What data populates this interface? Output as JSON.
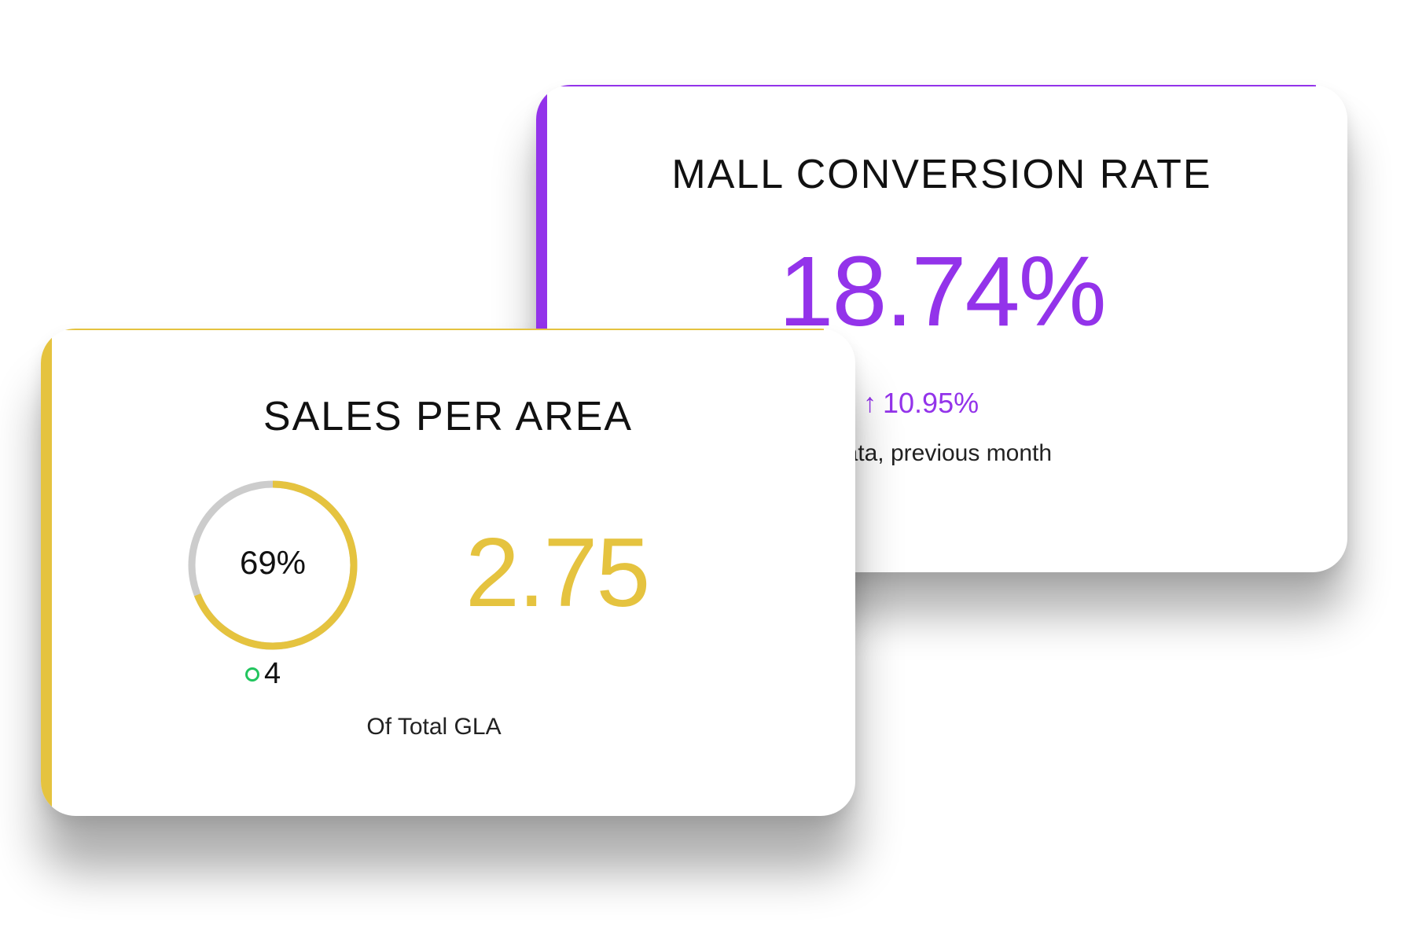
{
  "conversion_card": {
    "title": "MALL CONVERSION RATE",
    "value": "18.74%",
    "delta_arrow": "↑",
    "delta": "10.95%",
    "note": "data, previous month",
    "accent_color": "#9333ea"
  },
  "sales_card": {
    "title": "SALES PER AREA",
    "donut_label": "69%",
    "donut_fraction": 0.69,
    "legend_value": "4",
    "value": "2.75",
    "note": "Of Total GLA",
    "accent_color": "#e5c33f",
    "track_color": "#cccccc",
    "legend_color": "#22c55e"
  }
}
